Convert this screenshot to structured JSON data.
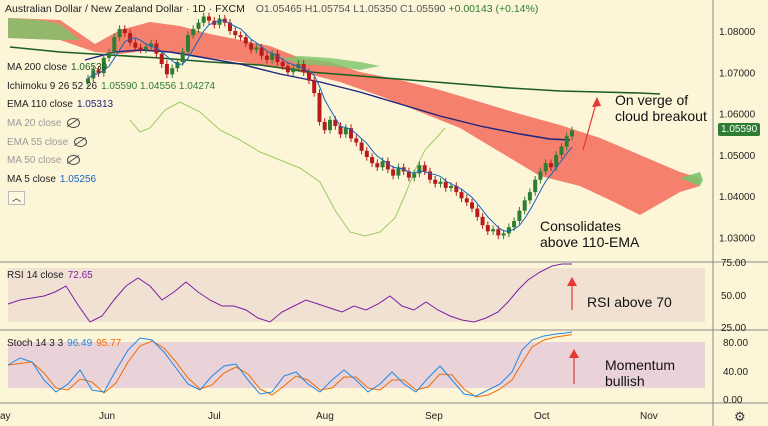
{
  "chart_data": {
    "type": "candlestick",
    "title": "Australian Dollar / New Zealand Dollar · 1D · FXCM",
    "ohlc": {
      "o": "O1.05465",
      "h": "H1.05754",
      "l": "L1.05350",
      "c": "C1.05590",
      "chg": "+0.00143 (+0.14%)"
    },
    "x_labels": [
      "ay",
      "Jun",
      "Jul",
      "Aug",
      "Sep",
      "Oct",
      "Nov"
    ],
    "price_ticks": [
      "1.08000",
      "1.07000",
      "1.06000",
      "1.05000",
      "1.04000",
      "1.03000"
    ],
    "last_price": "1.05590",
    "candles_close": [
      1.0685,
      1.0705,
      1.0698,
      1.0735,
      1.0748,
      1.0785,
      1.0805,
      1.0795,
      1.0772,
      1.076,
      1.0755,
      1.0762,
      1.077,
      1.0745,
      1.072,
      1.0695,
      1.071,
      1.0725,
      1.075,
      1.079,
      1.0805,
      1.082,
      1.0835,
      1.0825,
      1.0815,
      1.083,
      1.082,
      1.08,
      1.079,
      1.0785,
      1.077,
      1.0755,
      1.076,
      1.074,
      1.073,
      1.0745,
      1.0725,
      1.0715,
      1.07,
      1.071,
      1.072,
      1.07,
      1.068,
      1.065,
      1.058,
      1.056,
      1.0585,
      1.057,
      1.055,
      1.0565,
      1.054,
      1.053,
      1.051,
      1.0495,
      1.048,
      1.047,
      1.0485,
      1.0465,
      1.045,
      1.047,
      1.046,
      1.0445,
      1.0455,
      1.0475,
      1.046,
      1.044,
      1.043,
      1.0435,
      1.042,
      1.0425,
      1.041,
      1.0395,
      1.0385,
      1.037,
      1.035,
      1.033,
      1.0315,
      1.032,
      1.0305,
      1.031,
      1.0325,
      1.034,
      1.0365,
      1.039,
      1.041,
      1.044,
      1.046,
      1.048,
      1.047,
      1.05,
      1.052,
      1.0545,
      1.0559
    ],
    "indicators": [
      {
        "label": "MA 200 close",
        "value": "1.06539",
        "color": "#1b5e20",
        "visible": true
      },
      {
        "label": "Ichimoku 9 26 52 26",
        "value": "1.05590 1.04556 1.04274",
        "color": "#2e7d32",
        "visible": true
      },
      {
        "label": "EMA 110 close",
        "value": "1.05313",
        "color": "#1a237e",
        "visible": true
      },
      {
        "label": "MA 20 close",
        "value": "",
        "color": "#777777",
        "visible": false
      },
      {
        "label": "EMA 55 close",
        "value": "",
        "color": "#777777",
        "visible": false
      },
      {
        "label": "MA 50 close",
        "value": "",
        "color": "#777777",
        "visible": false
      },
      {
        "label": "MA 5 close",
        "value": "1.05256",
        "color": "#1565c0",
        "visible": true
      }
    ],
    "rsi": {
      "label": "RSI 14 close",
      "value": "72.65",
      "ticks": [
        "75.00",
        "50.00",
        "25.00"
      ],
      "color": "#7b1fa2"
    },
    "stoch": {
      "label": "Stoch 14 3 3",
      "k": "96.49",
      "d": "95.77",
      "k_color": "#1e88e5",
      "d_color": "#ef6c00",
      "ticks": [
        "80.00",
        "40.00",
        "0.00"
      ]
    },
    "annotations": {
      "breakout": "On verge of\ncloud breakout",
      "consolidates": "Consolidates\nabove 110-EMA",
      "rsi": "RSI above 70",
      "momentum": "Momentum\nbullish"
    }
  }
}
